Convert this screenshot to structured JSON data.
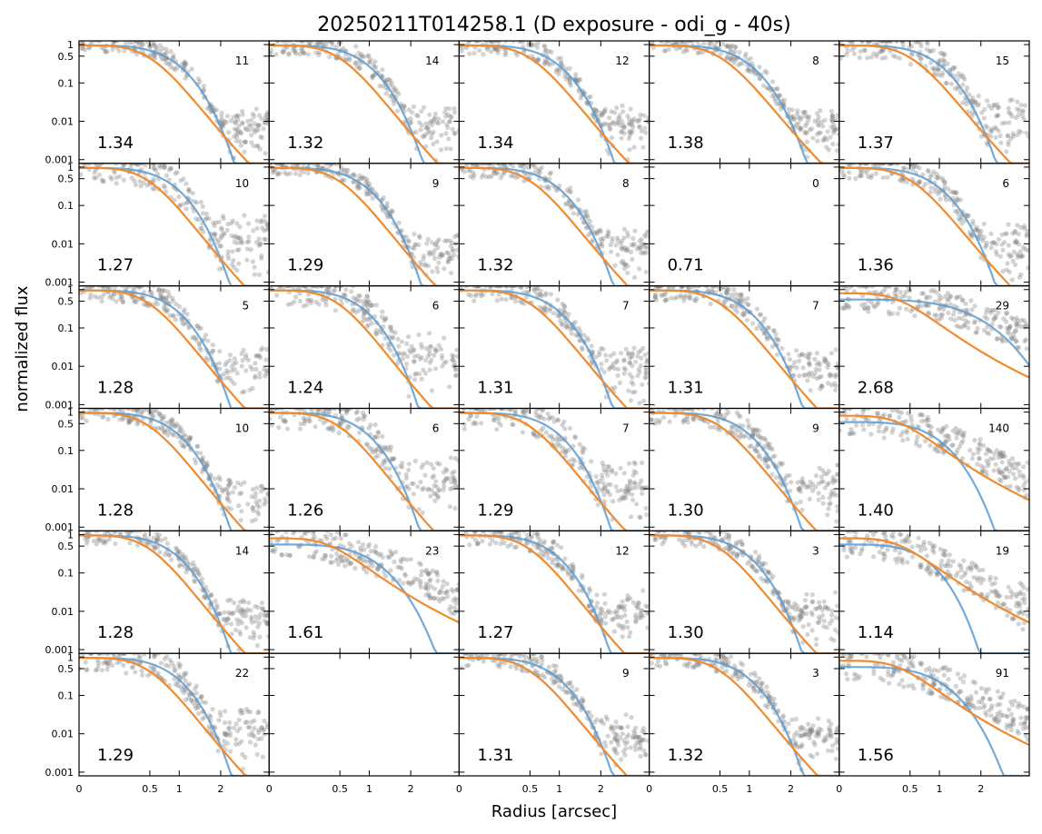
{
  "chart_data": {
    "type": "scatter",
    "title": "20250211T014258.1 (D exposure - odi_g - 40s)",
    "xlabel": "Radius [arcsec]",
    "ylabel": "normalized flux",
    "xscale": "sqrt",
    "yscale": "log",
    "xlim": [
      0,
      3.6
    ],
    "ylim": [
      0.0008,
      1.25
    ],
    "x_ticks": [
      0,
      0.5,
      1,
      2
    ],
    "y_ticks": [
      0.001,
      0.01,
      0.1,
      0.5,
      1
    ],
    "y_tick_labels": [
      "0.001",
      "0.01",
      "0.1",
      "0.5",
      "1"
    ],
    "grid": false,
    "rows": 6,
    "cols": 5,
    "colors": {
      "points": "#808080",
      "gaussian_fit": "#5b9bd0",
      "moffat_fit": "#f08a2e"
    },
    "panels": [
      {
        "fwhm": "1.34",
        "count": "11",
        "halo": 0.18
      },
      {
        "fwhm": "1.32",
        "count": "14",
        "halo": 0.3
      },
      {
        "fwhm": "1.34",
        "count": "12",
        "halo": 0.28
      },
      {
        "fwhm": "1.38",
        "count": "8",
        "halo": 0.15
      },
      {
        "fwhm": "1.37",
        "count": "15",
        "halo": 0.7
      },
      {
        "fwhm": "1.27",
        "count": "10",
        "halo": 0.8
      },
      {
        "fwhm": "1.29",
        "count": "9",
        "halo": 0.15
      },
      {
        "fwhm": "1.32",
        "count": "8",
        "halo": 0.35
      },
      {
        "fwhm": "0.71",
        "count": "0",
        "halo": 0,
        "empty": true
      },
      {
        "fwhm": "1.36",
        "count": "6",
        "halo": 0.45
      },
      {
        "fwhm": "1.28",
        "count": "5",
        "halo": 0.45
      },
      {
        "fwhm": "1.24",
        "count": "6",
        "halo": 0.9
      },
      {
        "fwhm": "1.31",
        "count": "7",
        "halo": 0.4
      },
      {
        "fwhm": "1.31",
        "count": "7",
        "halo": 0.4
      },
      {
        "fwhm": "2.68",
        "count": "29",
        "halo": 0.8,
        "broad": true
      },
      {
        "fwhm": "1.28",
        "count": "10",
        "halo": 0.25
      },
      {
        "fwhm": "1.26",
        "count": "6",
        "halo": 0.9
      },
      {
        "fwhm": "1.29",
        "count": "7",
        "halo": 0.95
      },
      {
        "fwhm": "1.30",
        "count": "9",
        "halo": 0.6
      },
      {
        "fwhm": "1.40",
        "count": "140",
        "halo": 0.85,
        "broad": true
      },
      {
        "fwhm": "1.28",
        "count": "14",
        "halo": 0.25
      },
      {
        "fwhm": "1.61",
        "count": "23",
        "halo": 0.85,
        "broad": true
      },
      {
        "fwhm": "1.27",
        "count": "12",
        "halo": 0.4
      },
      {
        "fwhm": "1.30",
        "count": "3",
        "halo": 0.35
      },
      {
        "fwhm": "1.14",
        "count": "19",
        "halo": 0.85,
        "broad": true
      },
      {
        "fwhm": "1.29",
        "count": "22",
        "halo": 0.75
      },
      {
        "fwhm": "",
        "count": "",
        "blank": true
      },
      {
        "fwhm": "1.31",
        "count": "9",
        "halo": 0.35
      },
      {
        "fwhm": "1.32",
        "count": "3",
        "halo": 0.3
      },
      {
        "fwhm": "1.56",
        "count": "91",
        "halo": 0.85,
        "broad": true
      }
    ]
  }
}
